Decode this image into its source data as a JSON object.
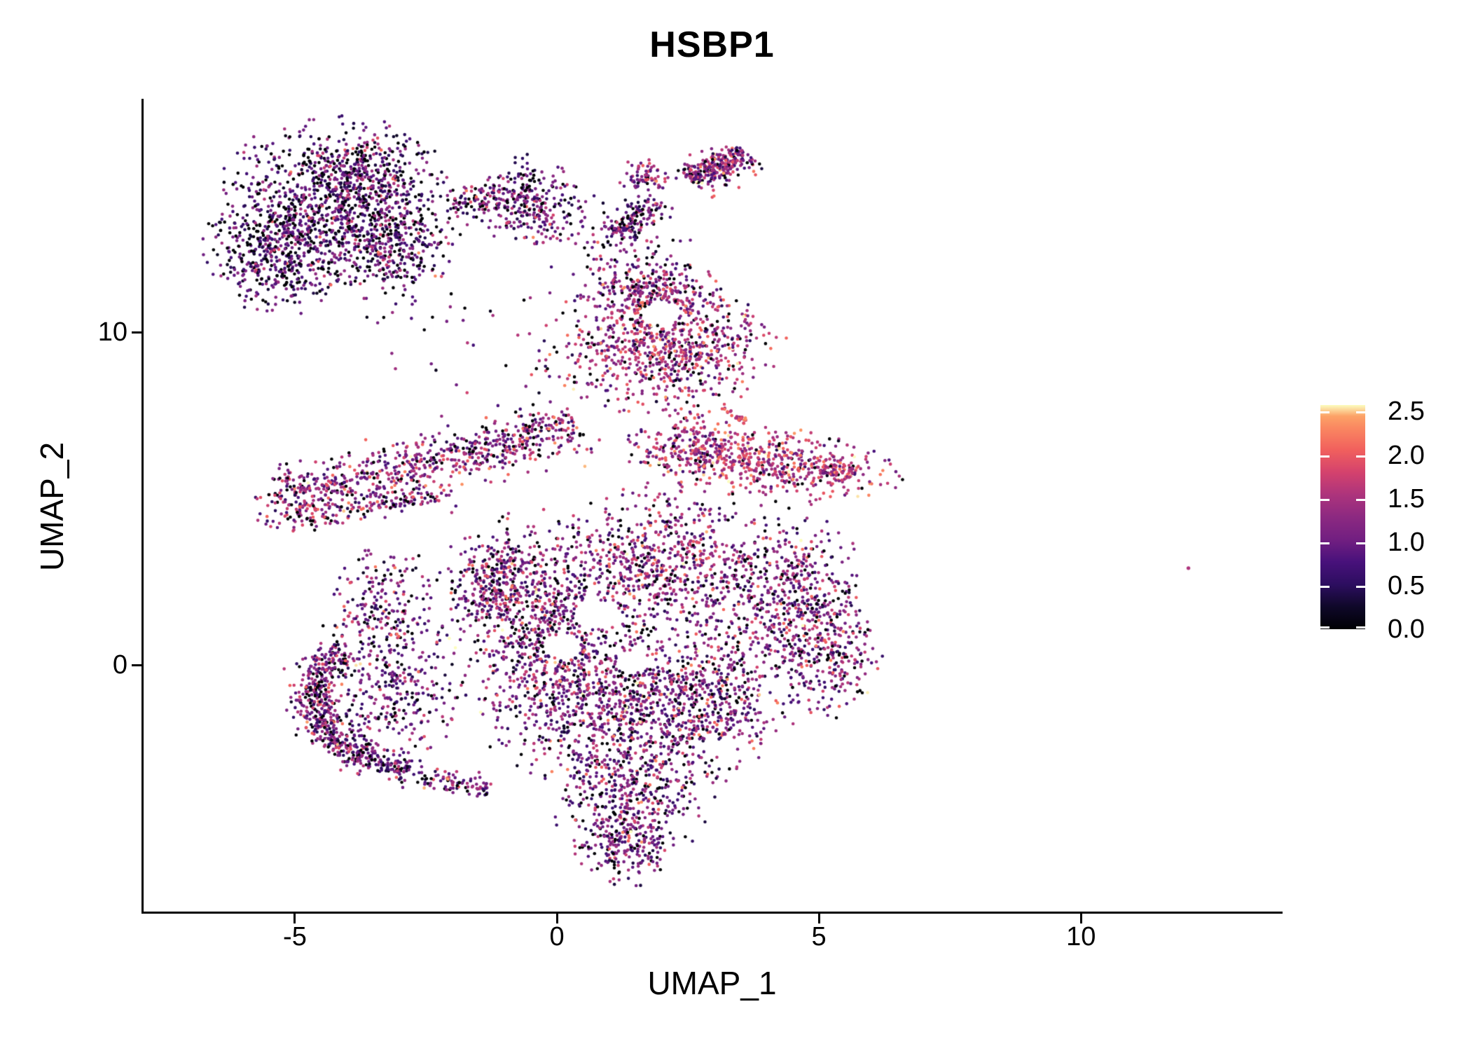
{
  "title": "HSBP1",
  "axes": {
    "x": {
      "label": "UMAP_1",
      "tick_labels": [
        "-5",
        "0",
        "5",
        "10"
      ],
      "tick_values": [
        -5,
        0,
        5,
        10
      ]
    },
    "y": {
      "label": "UMAP_2",
      "tick_labels": [
        "0",
        "10"
      ],
      "tick_values": [
        0,
        10
      ]
    }
  },
  "colorbar": {
    "position": "right",
    "tick_labels": [
      "2.5",
      "2.0",
      "1.5",
      "1.0",
      "0.5",
      "0.0"
    ],
    "tick_values": [
      2.5,
      2.0,
      1.5,
      1.0,
      0.5,
      0.0
    ],
    "max_value": 2.576,
    "colormap_name": "magma"
  },
  "chart_data": {
    "type": "scatter",
    "title": "HSBP1",
    "xlabel": "UMAP_1",
    "ylabel": "UMAP_2",
    "x_range": [
      -7.9,
      13.82
    ],
    "y_range": [
      -7.43,
      16.99
    ],
    "x_ticks": [
      -5,
      0,
      5,
      10
    ],
    "y_ticks": [
      0,
      10
    ],
    "grid": false,
    "legend_position": "right",
    "color_domain": [
      0,
      2.576
    ],
    "point_radius_px": 2.3,
    "seed": 7,
    "colormap_stops": [
      [
        0.0,
        "#000004"
      ],
      [
        0.1,
        "#0f0829"
      ],
      [
        0.2,
        "#2d0e60"
      ],
      [
        0.3,
        "#48117b"
      ],
      [
        0.4,
        "#721f81"
      ],
      [
        0.5,
        "#8c2981"
      ],
      [
        0.6,
        "#ad347c"
      ],
      [
        0.7,
        "#d4426d"
      ],
      [
        0.8,
        "#f1605d"
      ],
      [
        0.9,
        "#fa8861"
      ],
      [
        0.95,
        "#fca267"
      ],
      [
        1.0,
        "#fcfdbf"
      ]
    ],
    "holes": [
      {
        "x": 2.0,
        "y": 10.55,
        "r": 0.35
      },
      {
        "x": 0.75,
        "y": 1.5,
        "r": 0.42
      },
      {
        "x": 0.1,
        "y": 0.55,
        "r": 0.36
      },
      {
        "x": 1.45,
        "y": 0.1,
        "r": 0.33
      },
      {
        "x": 3.35,
        "y": 3.95,
        "r": 0.3
      }
    ],
    "clusters": [
      {
        "id": "topleft-core",
        "kind": "gauss",
        "cx": -4.2,
        "cy": 13.8,
        "sx": 1.0,
        "sy": 1.15,
        "n": 950,
        "vm": 0.85,
        "vs": 0.5,
        "z": 0.2
      },
      {
        "id": "topleft-west",
        "kind": "gauss",
        "cx": -5.35,
        "cy": 12.4,
        "sx": 0.62,
        "sy": 0.85,
        "n": 420,
        "vm": 0.8,
        "vs": 0.5,
        "z": 0.22
      },
      {
        "id": "topleft-southeast",
        "kind": "gauss",
        "cx": -3.1,
        "cy": 12.5,
        "sx": 0.55,
        "sy": 0.7,
        "n": 260,
        "vm": 0.9,
        "vs": 0.5,
        "z": 0.2
      },
      {
        "id": "topleft-north",
        "kind": "gauss",
        "cx": -3.6,
        "cy": 14.8,
        "sx": 0.6,
        "sy": 0.5,
        "n": 190,
        "vm": 0.85,
        "vs": 0.5,
        "z": 0.2
      },
      {
        "id": "bridge",
        "kind": "line",
        "x1": -2.0,
        "y1": 13.8,
        "x2": -0.4,
        "y2": 14.3,
        "w": 0.3,
        "n": 150,
        "vm": 1.0,
        "vs": 0.5,
        "z": 0.16
      },
      {
        "id": "bridge-blob",
        "kind": "gauss",
        "cx": -0.45,
        "cy": 13.9,
        "sx": 0.5,
        "sy": 0.68,
        "n": 210,
        "vm": 1.0,
        "vs": 0.5,
        "z": 0.16
      },
      {
        "id": "top-head",
        "kind": "line",
        "x1": 2.55,
        "y1": 14.55,
        "x2": 3.6,
        "y2": 15.4,
        "w": 0.22,
        "n": 280,
        "vm": 1.3,
        "vs": 0.5,
        "z": 0.13
      },
      {
        "id": "top-head-west",
        "kind": "gauss",
        "cx": 1.7,
        "cy": 14.7,
        "sx": 0.25,
        "sy": 0.22,
        "n": 70,
        "vm": 1.3,
        "vs": 0.5,
        "z": 0.12
      },
      {
        "id": "top-arm",
        "kind": "line",
        "x1": 1.95,
        "y1": 13.95,
        "x2": 1.05,
        "y2": 12.95,
        "w": 0.17,
        "n": 115,
        "vm": 1.0,
        "vs": 0.5,
        "z": 0.16
      },
      {
        "id": "top-scatter",
        "kind": "gauss",
        "cx": 1.1,
        "cy": 12.9,
        "sx": 0.62,
        "sy": 0.55,
        "n": 100,
        "vm": 0.95,
        "vs": 0.5,
        "z": 0.2
      },
      {
        "id": "ring-neck",
        "kind": "gauss",
        "cx": 1.85,
        "cy": 11.2,
        "sx": 0.6,
        "sy": 0.5,
        "n": 280,
        "vm": 1.3,
        "vs": 0.5,
        "z": 0.12
      },
      {
        "id": "ring-main",
        "kind": "gauss",
        "cx": 2.0,
        "cy": 9.6,
        "sx": 1.0,
        "sy": 0.9,
        "n": 760,
        "vm": 1.45,
        "vs": 0.5,
        "z": 0.1
      },
      {
        "id": "east-band",
        "kind": "gauss",
        "cx": 3.9,
        "cy": 6.1,
        "sx": 1.3,
        "sy": 0.5,
        "rot": -10,
        "n": 560,
        "vm": 1.6,
        "vs": 0.45,
        "z": 0.07,
        "trunc": 2.2
      },
      {
        "id": "east-tip",
        "kind": "line",
        "x1": 5.0,
        "y1": 5.9,
        "x2": 5.62,
        "y2": 5.68,
        "w": 0.15,
        "n": 60,
        "vm": 1.6,
        "vs": 0.4,
        "z": 0.06
      },
      {
        "id": "east-streak",
        "kind": "line",
        "x1": 3.1,
        "y1": 7.8,
        "x2": 3.65,
        "y2": 7.25,
        "w": 0.07,
        "n": 28,
        "vm": 1.9,
        "vs": 0.3,
        "z": 0.02
      },
      {
        "id": "east-west-end",
        "kind": "gauss",
        "cx": 2.6,
        "cy": 6.6,
        "sx": 0.5,
        "sy": 0.5,
        "n": 150,
        "vm": 1.5,
        "vs": 0.45,
        "z": 0.08
      },
      {
        "id": "west-band",
        "kind": "line",
        "x1": -5.0,
        "y1": 5.1,
        "x2": 0.4,
        "y2": 7.2,
        "w": 0.38,
        "n": 690,
        "vm": 1.3,
        "vs": 0.5,
        "z": 0.12
      },
      {
        "id": "west-band-lower",
        "kind": "line",
        "x1": -4.9,
        "y1": 4.35,
        "x2": -2.0,
        "y2": 5.2,
        "w": 0.18,
        "n": 150,
        "vm": 1.25,
        "vs": 0.5,
        "z": 0.13
      },
      {
        "id": "west-band-tip",
        "kind": "gauss",
        "cx": -5.2,
        "cy": 4.9,
        "sx": 0.28,
        "sy": 0.5,
        "n": 80,
        "vm": 1.2,
        "vs": 0.5,
        "z": 0.13
      },
      {
        "id": "central-nw",
        "kind": "gauss",
        "cx": -0.3,
        "cy": 1.6,
        "sx": 0.85,
        "sy": 1.3,
        "n": 700,
        "vm": 1.15,
        "vs": 0.52,
        "z": 0.13
      },
      {
        "id": "central-n",
        "kind": "gauss",
        "cx": 2.05,
        "cy": 3.1,
        "sx": 0.9,
        "sy": 1.0,
        "n": 620,
        "vm": 1.25,
        "vs": 0.5,
        "z": 0.12
      },
      {
        "id": "central-ne",
        "kind": "gauss",
        "cx": 4.3,
        "cy": 2.1,
        "sx": 0.75,
        "sy": 1.25,
        "n": 560,
        "vm": 1.15,
        "vs": 0.52,
        "z": 0.13
      },
      {
        "id": "central-sw",
        "kind": "gauss",
        "cx": 0.7,
        "cy": -1.1,
        "sx": 0.95,
        "sy": 1.15,
        "n": 700,
        "vm": 1.15,
        "vs": 0.52,
        "z": 0.13
      },
      {
        "id": "central-s",
        "kind": "gauss",
        "cx": 2.7,
        "cy": -1.1,
        "sx": 0.8,
        "sy": 1.05,
        "n": 560,
        "vm": 1.15,
        "vs": 0.52,
        "z": 0.13
      },
      {
        "id": "central-lower",
        "kind": "gauss",
        "cx": 1.4,
        "cy": -3.8,
        "sx": 0.7,
        "sy": 0.9,
        "n": 420,
        "vm": 1.1,
        "vs": 0.52,
        "z": 0.14
      },
      {
        "id": "central-tail",
        "kind": "gauss",
        "cx": 1.25,
        "cy": -5.5,
        "sx": 0.45,
        "sy": 0.55,
        "n": 190,
        "vm": 1.1,
        "vs": 0.5,
        "z": 0.14
      },
      {
        "id": "central-east-edge",
        "kind": "gauss",
        "cx": 5.2,
        "cy": 0.4,
        "sx": 0.45,
        "sy": 0.95,
        "n": 260,
        "vm": 1.2,
        "vs": 0.5,
        "z": 0.12
      },
      {
        "id": "central-west-edge",
        "kind": "gauss",
        "cx": -1.25,
        "cy": 2.6,
        "sx": 0.45,
        "sy": 0.6,
        "n": 220,
        "vm": 1.15,
        "vs": 0.5,
        "z": 0.13
      },
      {
        "id": "crescent-arc",
        "kind": "arc",
        "cx": -2.35,
        "cy": -0.95,
        "r": 2.25,
        "a1": 140,
        "a2": 258,
        "w": 0.22,
        "n": 620,
        "vm": 1.1,
        "vs": 0.5,
        "z": 0.15
      },
      {
        "id": "crescent-spray",
        "kind": "gauss",
        "cx": -3.05,
        "cy": -1.0,
        "sx": 0.55,
        "sy": 0.85,
        "n": 230,
        "vm": 1.05,
        "vs": 0.5,
        "z": 0.15
      },
      {
        "id": "crescent-hook",
        "kind": "gauss",
        "cx": -3.3,
        "cy": 1.5,
        "sx": 0.5,
        "sy": 0.95,
        "n": 250,
        "vm": 1.1,
        "vs": 0.5,
        "z": 0.15
      },
      {
        "id": "crescent-tail",
        "kind": "line",
        "x1": -2.8,
        "y1": -3.3,
        "x2": -1.3,
        "y2": -3.75,
        "w": 0.16,
        "n": 90,
        "vm": 1.1,
        "vs": 0.5,
        "z": 0.14
      },
      {
        "id": "sparse-mid-upper",
        "kind": "gauss",
        "cx": 0.3,
        "cy": 9.6,
        "sx": 1.25,
        "sy": 1.3,
        "n": 45,
        "vm": 1.0,
        "vs": 0.5,
        "z": 0.2
      },
      {
        "id": "sparse-left-upper",
        "kind": "gauss",
        "cx": -2.5,
        "cy": 10.0,
        "sx": 0.8,
        "sy": 1.0,
        "n": 18,
        "vm": 0.9,
        "vs": 0.5,
        "z": 0.2
      }
    ],
    "outlier_points": [
      {
        "x": 12.05,
        "y": 2.91,
        "value": 1.55
      }
    ]
  }
}
